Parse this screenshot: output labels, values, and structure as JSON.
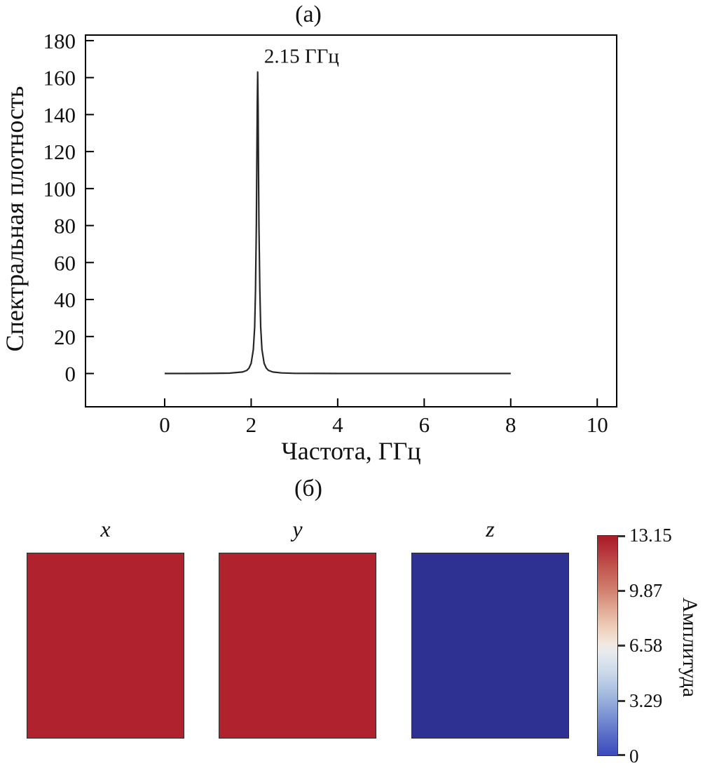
{
  "panels": {
    "a_tag": "(а)",
    "b_tag": "(б)"
  },
  "chart_data": [
    {
      "type": "line",
      "panel": "(а)",
      "xlabel": "Частота, ГГц",
      "ylabel": "Спектральная плотность",
      "xlim": [
        -1.83,
        10.45
      ],
      "ylim": [
        -18,
        183
      ],
      "xticks": [
        0,
        2,
        4,
        6,
        8,
        10
      ],
      "yticks": [
        0,
        20,
        40,
        60,
        80,
        100,
        120,
        140,
        160,
        180
      ],
      "grid": false,
      "line_color": "#262626",
      "peak": {
        "x": 2.15,
        "y": 163,
        "label": "2.15 ГГц"
      },
      "annotation_pos": {
        "x": 2.3,
        "y": 168
      },
      "points": [
        [
          0,
          0
        ],
        [
          0.5,
          0
        ],
        [
          1.0,
          0.05
        ],
        [
          1.5,
          0.2
        ],
        [
          1.8,
          0.8
        ],
        [
          1.9,
          1.7
        ],
        [
          1.95,
          2.9
        ],
        [
          2.0,
          5.5
        ],
        [
          2.05,
          13
        ],
        [
          2.08,
          25
        ],
        [
          2.1,
          45
        ],
        [
          2.12,
          80
        ],
        [
          2.13,
          110
        ],
        [
          2.14,
          145
        ],
        [
          2.15,
          163
        ],
        [
          2.16,
          145
        ],
        [
          2.17,
          110
        ],
        [
          2.18,
          80
        ],
        [
          2.2,
          45
        ],
        [
          2.22,
          25
        ],
        [
          2.25,
          13
        ],
        [
          2.3,
          5.5
        ],
        [
          2.35,
          2.9
        ],
        [
          2.4,
          1.7
        ],
        [
          2.5,
          0.8
        ],
        [
          2.7,
          0.3
        ],
        [
          3.0,
          0.1
        ],
        [
          3.5,
          0.05
        ],
        [
          4,
          0
        ],
        [
          5,
          0
        ],
        [
          6,
          0
        ],
        [
          7,
          0
        ],
        [
          8,
          0
        ]
      ]
    },
    {
      "type": "heatmap",
      "panel": "(б)",
      "squares": [
        {
          "label": "x",
          "value": 13.15,
          "color": "#b0232e"
        },
        {
          "label": "y",
          "value": 13.15,
          "color": "#b0232e"
        },
        {
          "label": "z",
          "value": 0,
          "color": "#2e3092"
        }
      ],
      "colorbar": {
        "label": "Амплитуда",
        "min": 0,
        "max": 13.15,
        "ticks": [
          "13.15",
          "9.87",
          "6.58",
          "3.29",
          "0"
        ],
        "tick_values": [
          13.15,
          9.87,
          6.58,
          3.29,
          0
        ],
        "colormap": "coolwarm",
        "top_color": "#a91c24",
        "bottom_color": "#3d4abc"
      }
    }
  ]
}
